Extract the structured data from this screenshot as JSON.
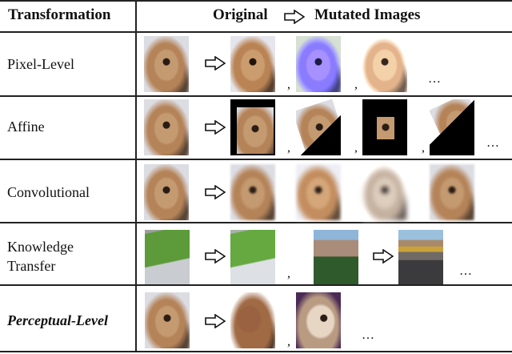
{
  "header": {
    "transformation": "Transformation",
    "original": "Original",
    "mutated": "Mutated Images"
  },
  "rows": [
    {
      "label": "Pixel-Level"
    },
    {
      "label": "Affine"
    },
    {
      "label": "Convolutional"
    },
    {
      "label_line1": "Knowledge",
      "label_line2": "Transfer"
    },
    {
      "label": "Perceptual-Level"
    }
  ],
  "comma": ",",
  "ellipsis": "…",
  "icons": {
    "arrow": "hollow-right-arrow-icon"
  }
}
